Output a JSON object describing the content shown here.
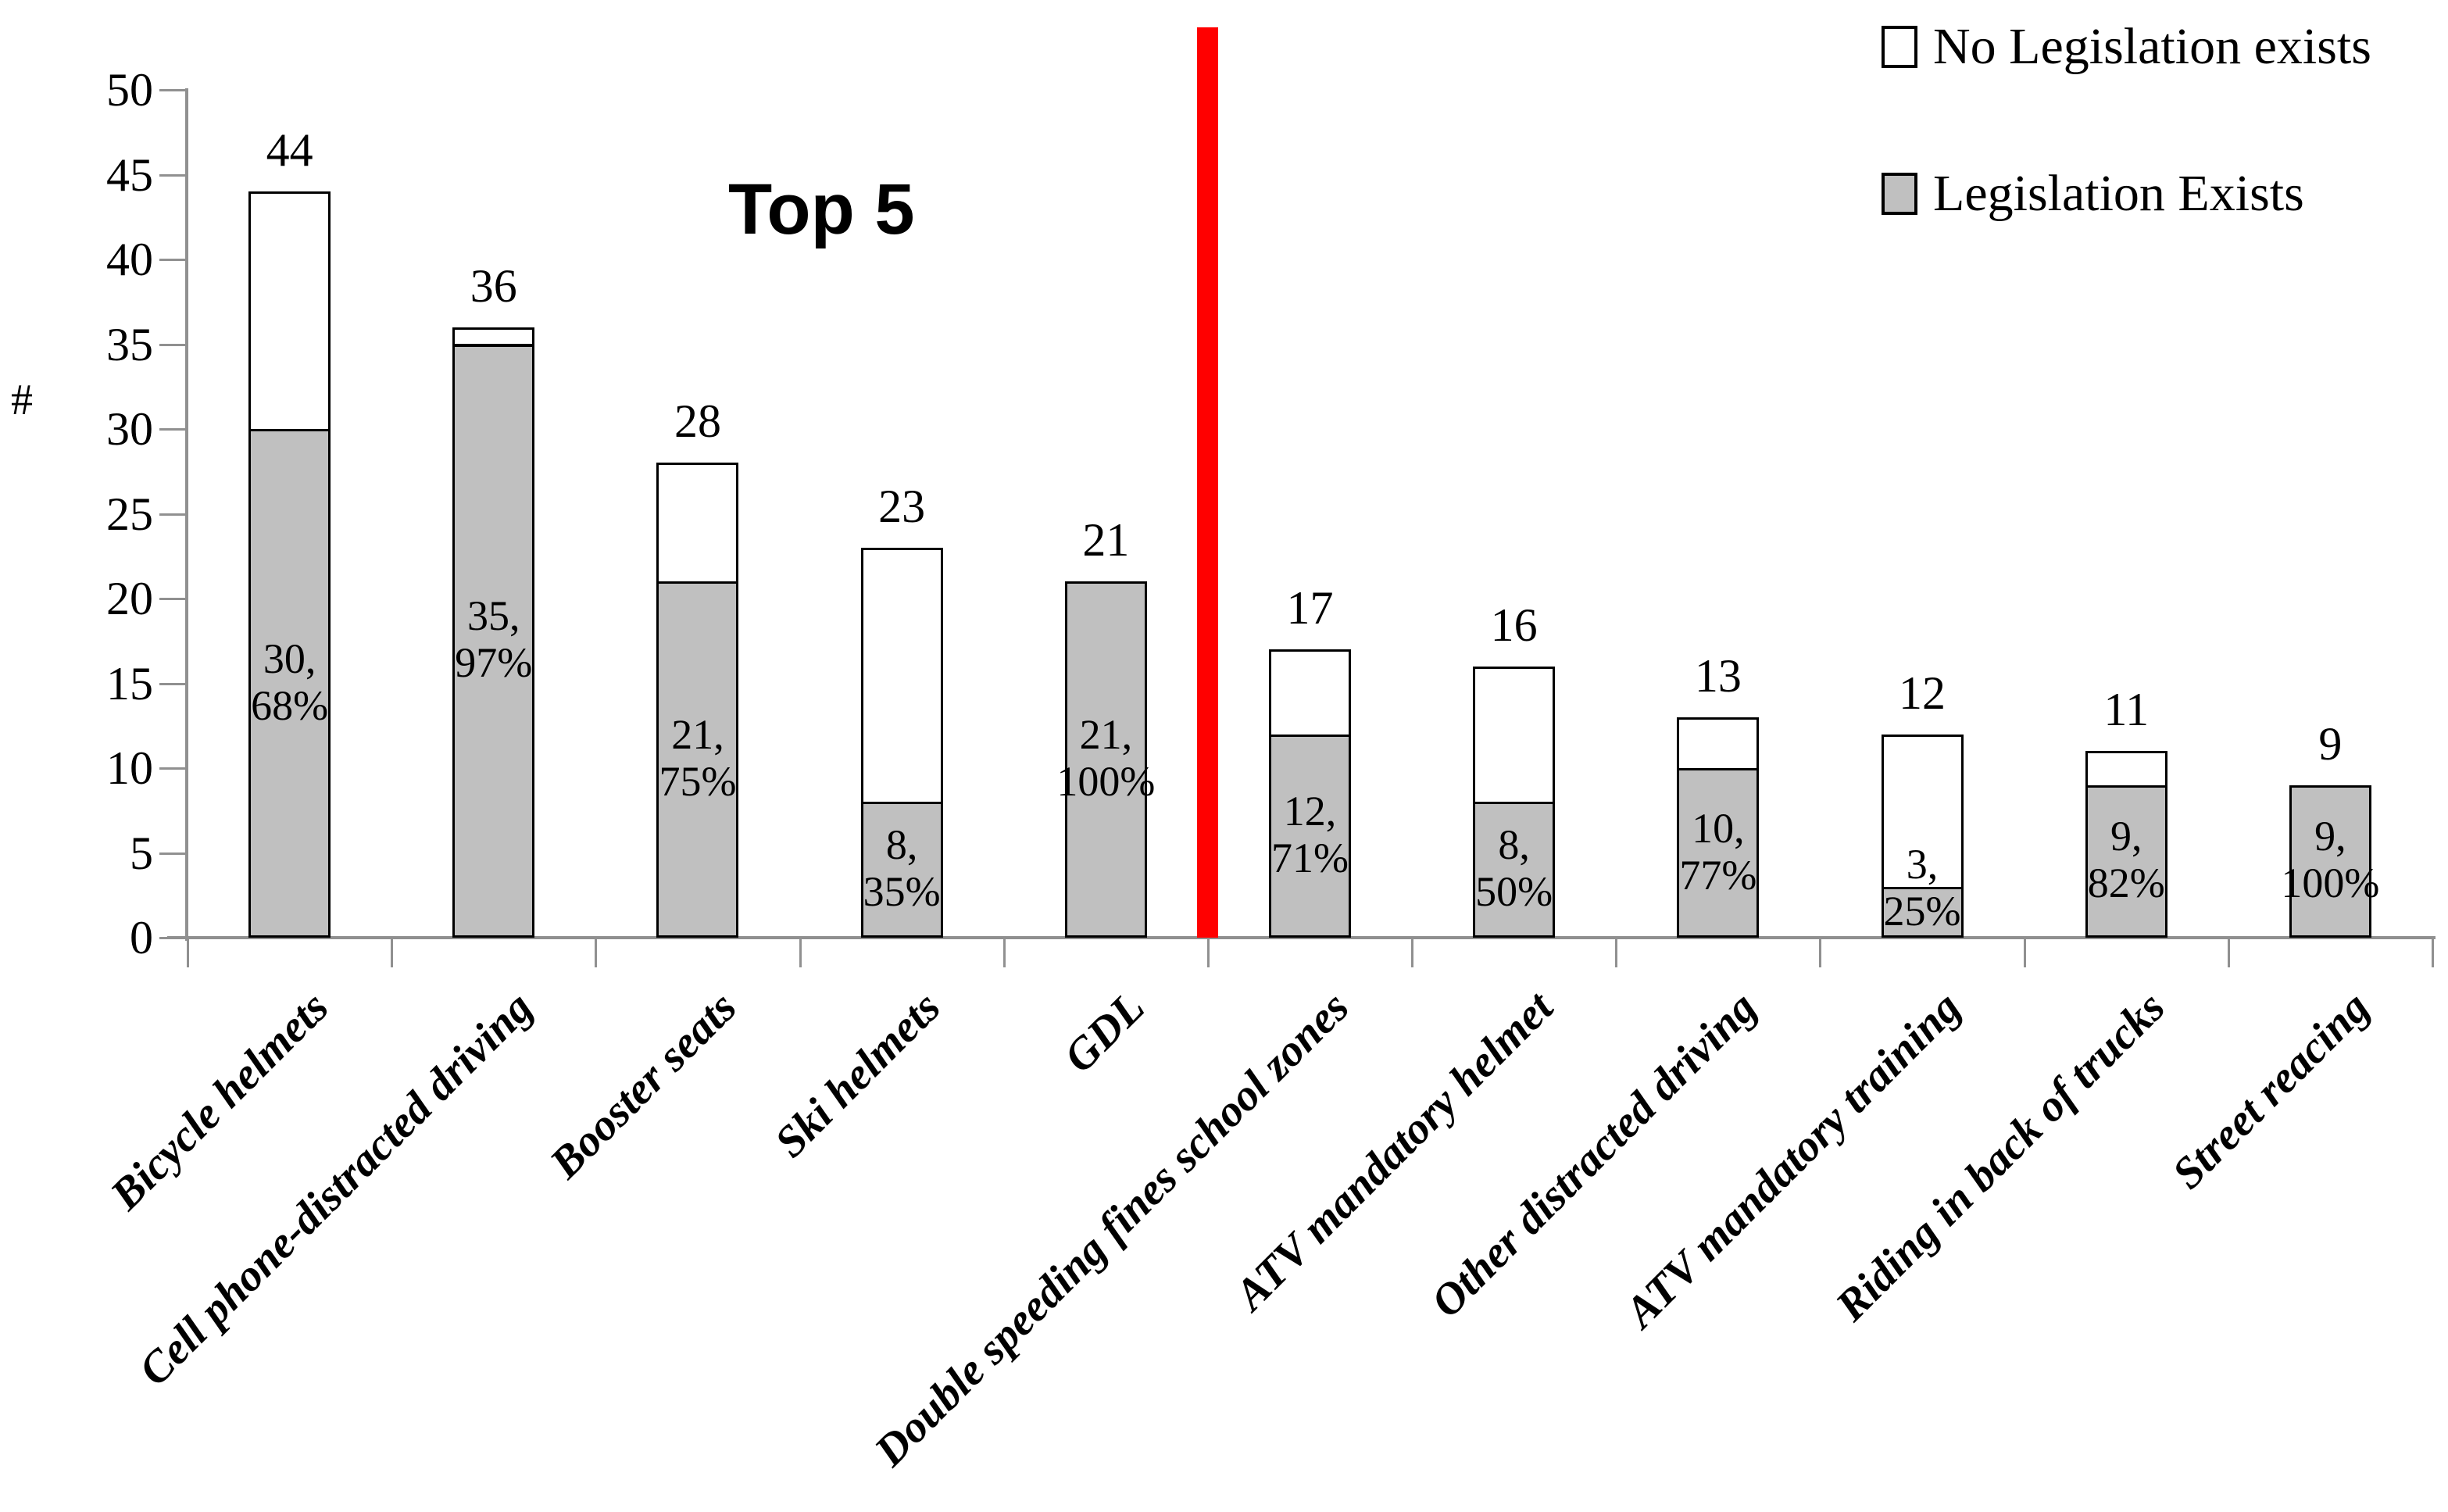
{
  "chart_data": {
    "type": "bar",
    "stacked": true,
    "title": "Top 5",
    "ylabel": "#",
    "ylim": [
      0,
      50
    ],
    "y_ticks": [
      0,
      5,
      10,
      15,
      20,
      25,
      30,
      35,
      40,
      45,
      50
    ],
    "grid": false,
    "legend_position": "top-right",
    "categories": [
      "Bicycle helmets",
      "Cell phone-distracted driving",
      "Booster seats",
      "Ski helmets",
      "GDL",
      "Double speeding fines school zones",
      "ATV mandatory helmet",
      "Other distracted driving",
      "ATV mandatory training",
      "Riding in back of trucks",
      "Street reacing"
    ],
    "series": [
      {
        "name": "Legislation Exists",
        "color": "#C0C0C0",
        "values": [
          30,
          35,
          21,
          8,
          21,
          12,
          8,
          10,
          3,
          9,
          9
        ]
      },
      {
        "name": "No Legislation exists",
        "color": "#FFFFFF",
        "values": [
          14,
          1,
          7,
          15,
          0,
          5,
          8,
          3,
          9,
          2,
          0
        ]
      }
    ],
    "totals": [
      44,
      36,
      28,
      23,
      21,
      17,
      16,
      13,
      12,
      11,
      9
    ],
    "bars": [
      {
        "category": "Bicycle helmets",
        "total": 44,
        "exists": 30,
        "pct": "68%"
      },
      {
        "category": "Cell phone-distracted driving",
        "total": 36,
        "exists": 35,
        "pct": "97%"
      },
      {
        "category": "Booster seats",
        "total": 28,
        "exists": 21,
        "pct": "75%"
      },
      {
        "category": "Ski helmets",
        "total": 23,
        "exists": 8,
        "pct": "35%"
      },
      {
        "category": "GDL",
        "total": 21,
        "exists": 21,
        "pct": "100%"
      },
      {
        "category": "Double speeding fines school zones",
        "total": 17,
        "exists": 12,
        "pct": "71%"
      },
      {
        "category": "ATV mandatory helmet",
        "total": 16,
        "exists": 8,
        "pct": "50%"
      },
      {
        "category": "Other distracted driving",
        "total": 13,
        "exists": 10,
        "pct": "77%"
      },
      {
        "category": "ATV mandatory training",
        "total": 12,
        "exists": 3,
        "pct": "25%"
      },
      {
        "category": "Riding in back of trucks",
        "total": 11,
        "exists": 9,
        "pct": "82%"
      },
      {
        "category": "Street reacing",
        "total": 9,
        "exists": 9,
        "pct": "100%"
      }
    ],
    "divider": {
      "color": "#FF0000",
      "after_category": "GDL"
    }
  },
  "legend": {
    "items": [
      {
        "label": "No Legislation exists",
        "fill": "#FFFFFF"
      },
      {
        "label": "Legislation Exists",
        "fill": "#C0C0C0"
      }
    ]
  },
  "colors": {
    "bar_fill": "#C0C0C0",
    "bar_border": "#000000",
    "axis": "#909090",
    "divider": "#FF0000",
    "text": "#000000"
  }
}
